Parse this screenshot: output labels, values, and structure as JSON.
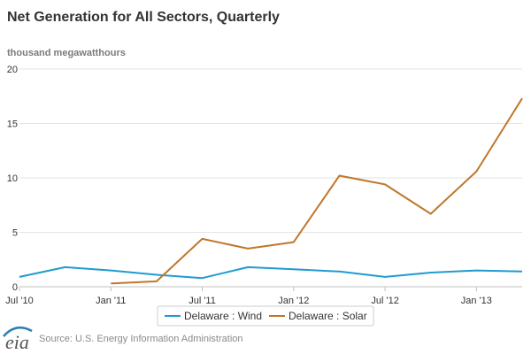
{
  "chart_data": {
    "type": "line",
    "title": "Net Generation for All Sectors, Quarterly",
    "ylabel": "thousand megawatthours",
    "xlabel": "",
    "ylim": [
      0,
      20
    ],
    "y_ticks": [
      0,
      5,
      10,
      15,
      20
    ],
    "x_ticks": [
      "Jul '10",
      "Jan '11",
      "Jul '11",
      "Jan '12",
      "Jul '12",
      "Jan '13"
    ],
    "x": [
      "Q3 2010",
      "Q4 2010",
      "Q1 2011",
      "Q2 2011",
      "Q3 2011",
      "Q4 2011",
      "Q1 2012",
      "Q2 2012",
      "Q3 2012",
      "Q4 2012",
      "Q1 2013",
      "Q2 2013"
    ],
    "grid": true,
    "legend_position": "bottom-center",
    "series": [
      {
        "name": "Delaware : Wind",
        "color": "#1f9bd1",
        "values": [
          0.9,
          1.8,
          1.5,
          1.1,
          0.8,
          1.8,
          1.6,
          1.4,
          0.9,
          1.3,
          1.5,
          1.4
        ]
      },
      {
        "name": "Delaware : Solar",
        "color": "#c0772c",
        "values": [
          null,
          null,
          0.3,
          0.5,
          4.4,
          3.5,
          4.1,
          10.2,
          9.4,
          6.7,
          10.6,
          17.3
        ]
      }
    ]
  },
  "source": "Source: U.S. Energy Information Administration",
  "logo_text": "eia"
}
